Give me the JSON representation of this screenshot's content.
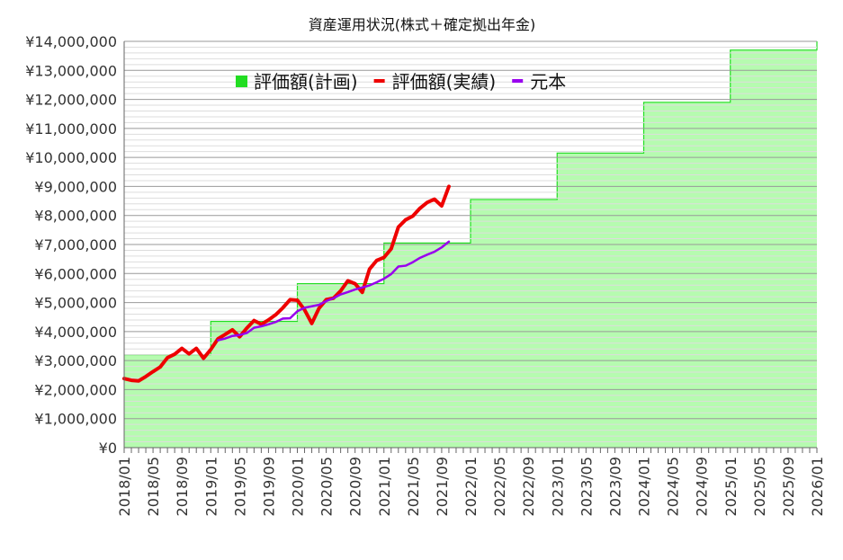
{
  "chart_data": {
    "type": "line",
    "title": "資産運用状況(株式＋確定拠出年金)",
    "y_range": [
      0,
      14000000
    ],
    "y_ticks": [
      {
        "value": 0,
        "label": "¥0"
      },
      {
        "value": 1000000,
        "label": "¥1,000,000"
      },
      {
        "value": 2000000,
        "label": "¥2,000,000"
      },
      {
        "value": 3000000,
        "label": "¥3,000,000"
      },
      {
        "value": 4000000,
        "label": "¥4,000,000"
      },
      {
        "value": 5000000,
        "label": "¥5,000,000"
      },
      {
        "value": 6000000,
        "label": "¥6,000,000"
      },
      {
        "value": 7000000,
        "label": "¥7,000,000"
      },
      {
        "value": 8000000,
        "label": "¥8,000,000"
      },
      {
        "value": 9000000,
        "label": "¥9,000,000"
      },
      {
        "value": 10000000,
        "label": "¥10,000,000"
      },
      {
        "value": 11000000,
        "label": "¥11,000,000"
      },
      {
        "value": 12000000,
        "label": "¥12,000,000"
      },
      {
        "value": 13000000,
        "label": "¥13,000,000"
      },
      {
        "value": 14000000,
        "label": "¥14,000,000"
      }
    ],
    "x_range": [
      "2018/01",
      "2026/01"
    ],
    "x_ticks": [
      "2018/01",
      "2018/05",
      "2018/09",
      "2019/01",
      "2019/05",
      "2019/09",
      "2020/01",
      "2020/05",
      "2020/09",
      "2021/01",
      "2021/05",
      "2021/09",
      "2022/01",
      "2022/05",
      "2022/09",
      "2023/01",
      "2023/05",
      "2023/09",
      "2024/01",
      "2024/05",
      "2024/09",
      "2025/01",
      "2025/05",
      "2025/09",
      "2026/01"
    ],
    "minor_tick_interval": "monthly",
    "grid": {
      "horizontal_minor": true,
      "horizontal_major": true,
      "vertical": false
    },
    "legend": {
      "placement": "top-left"
    },
    "series": [
      {
        "name": "評価額(計画)",
        "kind": "step-area",
        "color": "#22dd22",
        "fill": "#b6fbb0",
        "points": [
          {
            "x": "2018/01",
            "y": 3200000
          },
          {
            "x": "2019/01",
            "y": 4350000
          },
          {
            "x": "2020/01",
            "y": 5650000
          },
          {
            "x": "2021/01",
            "y": 7050000
          },
          {
            "x": "2022/01",
            "y": 8550000
          },
          {
            "x": "2023/01",
            "y": 10150000
          },
          {
            "x": "2024/01",
            "y": 11900000
          },
          {
            "x": "2025/01",
            "y": 13700000
          },
          {
            "x": "2026/01",
            "y": 14000000
          }
        ]
      },
      {
        "name": "評価額(実績)",
        "kind": "line",
        "color": "#ee0000",
        "points": [
          {
            "x": "2018/01",
            "y": 2380000
          },
          {
            "x": "2018/02",
            "y": 2320000
          },
          {
            "x": "2018/03",
            "y": 2300000
          },
          {
            "x": "2018/04",
            "y": 2450000
          },
          {
            "x": "2018/05",
            "y": 2620000
          },
          {
            "x": "2018/06",
            "y": 2780000
          },
          {
            "x": "2018/07",
            "y": 3100000
          },
          {
            "x": "2018/08",
            "y": 3220000
          },
          {
            "x": "2018/09",
            "y": 3420000
          },
          {
            "x": "2018/10",
            "y": 3230000
          },
          {
            "x": "2018/11",
            "y": 3420000
          },
          {
            "x": "2018/12",
            "y": 3080000
          },
          {
            "x": "2019/01",
            "y": 3380000
          },
          {
            "x": "2019/02",
            "y": 3750000
          },
          {
            "x": "2019/03",
            "y": 3900000
          },
          {
            "x": "2019/04",
            "y": 4060000
          },
          {
            "x": "2019/05",
            "y": 3820000
          },
          {
            "x": "2019/06",
            "y": 4120000
          },
          {
            "x": "2019/07",
            "y": 4380000
          },
          {
            "x": "2019/08",
            "y": 4250000
          },
          {
            "x": "2019/09",
            "y": 4400000
          },
          {
            "x": "2019/10",
            "y": 4580000
          },
          {
            "x": "2019/11",
            "y": 4820000
          },
          {
            "x": "2019/12",
            "y": 5100000
          },
          {
            "x": "2020/01",
            "y": 5080000
          },
          {
            "x": "2020/02",
            "y": 4750000
          },
          {
            "x": "2020/03",
            "y": 4280000
          },
          {
            "x": "2020/04",
            "y": 4800000
          },
          {
            "x": "2020/05",
            "y": 5100000
          },
          {
            "x": "2020/06",
            "y": 5150000
          },
          {
            "x": "2020/07",
            "y": 5400000
          },
          {
            "x": "2020/08",
            "y": 5750000
          },
          {
            "x": "2020/09",
            "y": 5650000
          },
          {
            "x": "2020/10",
            "y": 5350000
          },
          {
            "x": "2020/11",
            "y": 6150000
          },
          {
            "x": "2020/12",
            "y": 6450000
          },
          {
            "x": "2021/01",
            "y": 6550000
          },
          {
            "x": "2021/02",
            "y": 6850000
          },
          {
            "x": "2021/03",
            "y": 7600000
          },
          {
            "x": "2021/04",
            "y": 7850000
          },
          {
            "x": "2021/05",
            "y": 7980000
          },
          {
            "x": "2021/06",
            "y": 8250000
          },
          {
            "x": "2021/07",
            "y": 8450000
          },
          {
            "x": "2021/08",
            "y": 8560000
          },
          {
            "x": "2021/09",
            "y": 8330000
          },
          {
            "x": "2021/10",
            "y": 9000000
          }
        ]
      },
      {
        "name": "元本",
        "kind": "line",
        "color": "#9900ee",
        "points": [
          {
            "x": "2019/02",
            "y": 3700000
          },
          {
            "x": "2019/03",
            "y": 3760000
          },
          {
            "x": "2019/04",
            "y": 3850000
          },
          {
            "x": "2019/05",
            "y": 3880000
          },
          {
            "x": "2019/06",
            "y": 3950000
          },
          {
            "x": "2019/07",
            "y": 4130000
          },
          {
            "x": "2019/08",
            "y": 4180000
          },
          {
            "x": "2019/09",
            "y": 4250000
          },
          {
            "x": "2019/10",
            "y": 4330000
          },
          {
            "x": "2019/11",
            "y": 4450000
          },
          {
            "x": "2019/12",
            "y": 4460000
          },
          {
            "x": "2020/01",
            "y": 4700000
          },
          {
            "x": "2020/02",
            "y": 4820000
          },
          {
            "x": "2020/03",
            "y": 4870000
          },
          {
            "x": "2020/04",
            "y": 4920000
          },
          {
            "x": "2020/05",
            "y": 5050000
          },
          {
            "x": "2020/06",
            "y": 5150000
          },
          {
            "x": "2020/07",
            "y": 5280000
          },
          {
            "x": "2020/08",
            "y": 5360000
          },
          {
            "x": "2020/09",
            "y": 5450000
          },
          {
            "x": "2020/10",
            "y": 5520000
          },
          {
            "x": "2020/11",
            "y": 5590000
          },
          {
            "x": "2020/12",
            "y": 5700000
          },
          {
            "x": "2021/01",
            "y": 5820000
          },
          {
            "x": "2021/02",
            "y": 5980000
          },
          {
            "x": "2021/03",
            "y": 6240000
          },
          {
            "x": "2021/04",
            "y": 6270000
          },
          {
            "x": "2021/05",
            "y": 6390000
          },
          {
            "x": "2021/06",
            "y": 6540000
          },
          {
            "x": "2021/07",
            "y": 6650000
          },
          {
            "x": "2021/08",
            "y": 6750000
          },
          {
            "x": "2021/09",
            "y": 6900000
          },
          {
            "x": "2021/10",
            "y": 7100000
          }
        ]
      }
    ]
  }
}
